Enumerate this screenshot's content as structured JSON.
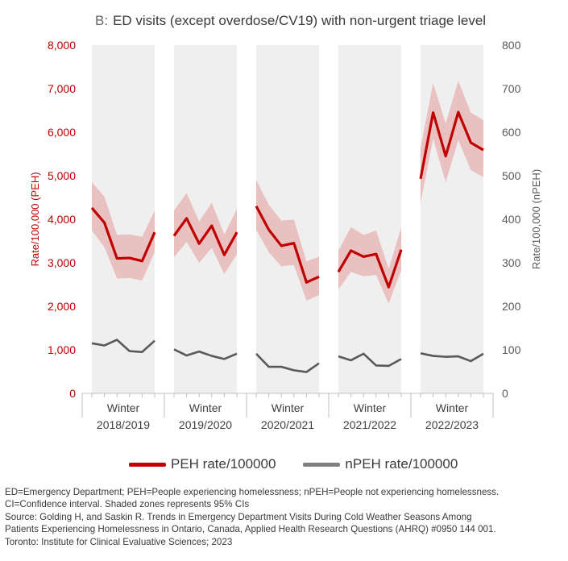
{
  "header": {
    "letter": "B:",
    "title": "ED visits (except overdose/CV19) with non-urgent triage level"
  },
  "legend": [
    {
      "label": "PEH rate/100000",
      "color": "#c00000"
    },
    {
      "label": "nPEH rate/100000",
      "color": "#7f7f7f"
    }
  ],
  "notes": [
    "ED=Emergency Department; PEH=People experiencing homelessness; nPEH=People not experiencing homelessness.",
    "CI=Confidence interval. Shaded zones represents 95% CIs",
    "Source: Golding H, and Saskin R. Trends in Emergency Department Visits During Cold Weather Seasons Among",
    "Patients Experiencing Homelessness in Ontario, Canada, Applied Health Research Questions (AHRQ) #0950 144 001.",
    "Toronto: Institute for Clinical Evaluative Sciences; 2023"
  ],
  "chart_data": {
    "type": "line",
    "title": "ED visits (except overdose/CV19) with non-urgent triage level",
    "ylabel": "Rate/100,000 (PEH)",
    "ylabel_right": "Rate/100,000 (nPEH)",
    "ylim": [
      0,
      8000
    ],
    "ylim_right": [
      0,
      800
    ],
    "yticks": [
      "0",
      "1,000",
      "2,000",
      "3,000",
      "4,000",
      "5,000",
      "6,000",
      "7,000",
      "8,000"
    ],
    "yticks_right": [
      "0",
      "100",
      "200",
      "300",
      "400",
      "500",
      "600",
      "700",
      "800"
    ],
    "grid": false,
    "legend_position": "bottom",
    "groups": [
      {
        "label": [
          "Winter",
          "2018/2019"
        ],
        "n": 6
      },
      {
        "label": [
          "Winter",
          "2019/2020"
        ],
        "n": 6
      },
      {
        "label": [
          "Winter",
          "2020/2021"
        ],
        "n": 6
      },
      {
        "label": [
          "Winter",
          "2021/2022"
        ],
        "n": 6
      },
      {
        "label": [
          "Winter",
          "2022/2023"
        ],
        "n": 6
      }
    ],
    "series": [
      {
        "name": "PEH rate/100000",
        "axis": "left",
        "color": "#c00000",
        "band_color": "#e6b8b7",
        "values": [
          [
            4260,
            3920,
            3100,
            3110,
            3040,
            3700
          ],
          [
            3620,
            4020,
            3440,
            3850,
            3180,
            3700
          ],
          [
            4300,
            3760,
            3390,
            3450,
            2550,
            2680
          ],
          [
            2790,
            3280,
            3140,
            3200,
            2440,
            3300
          ],
          [
            4930,
            6450,
            5450,
            6460,
            5760,
            5590
          ]
        ],
        "ci_upper": [
          [
            4850,
            4520,
            3640,
            3650,
            3600,
            4200
          ],
          [
            4200,
            4600,
            3950,
            4380,
            3650,
            4230
          ],
          [
            4900,
            4330,
            3970,
            3990,
            3030,
            3140
          ],
          [
            3280,
            3820,
            3640,
            3740,
            2860,
            3810
          ],
          [
            5640,
            7130,
            6200,
            7180,
            6450,
            6280
          ]
        ],
        "ci_lower": [
          [
            3740,
            3360,
            2640,
            2650,
            2590,
            3250
          ],
          [
            3130,
            3480,
            3000,
            3340,
            2740,
            3200
          ],
          [
            3760,
            3240,
            2920,
            2950,
            2130,
            2260
          ],
          [
            2390,
            2790,
            2690,
            2720,
            2060,
            2830
          ],
          [
            4380,
            5850,
            4850,
            5820,
            5130,
            4970
          ]
        ]
      },
      {
        "name": "nPEH rate/100000",
        "axis": "right",
        "color": "#595959",
        "values": [
          [
            115,
            110,
            123,
            97,
            95,
            121
          ],
          [
            101,
            87,
            96,
            86,
            79,
            91
          ],
          [
            91,
            61,
            61,
            53,
            49,
            69
          ],
          [
            85,
            76,
            91,
            64,
            63,
            79
          ],
          [
            92,
            86,
            84,
            85,
            74,
            91
          ]
        ]
      }
    ]
  }
}
